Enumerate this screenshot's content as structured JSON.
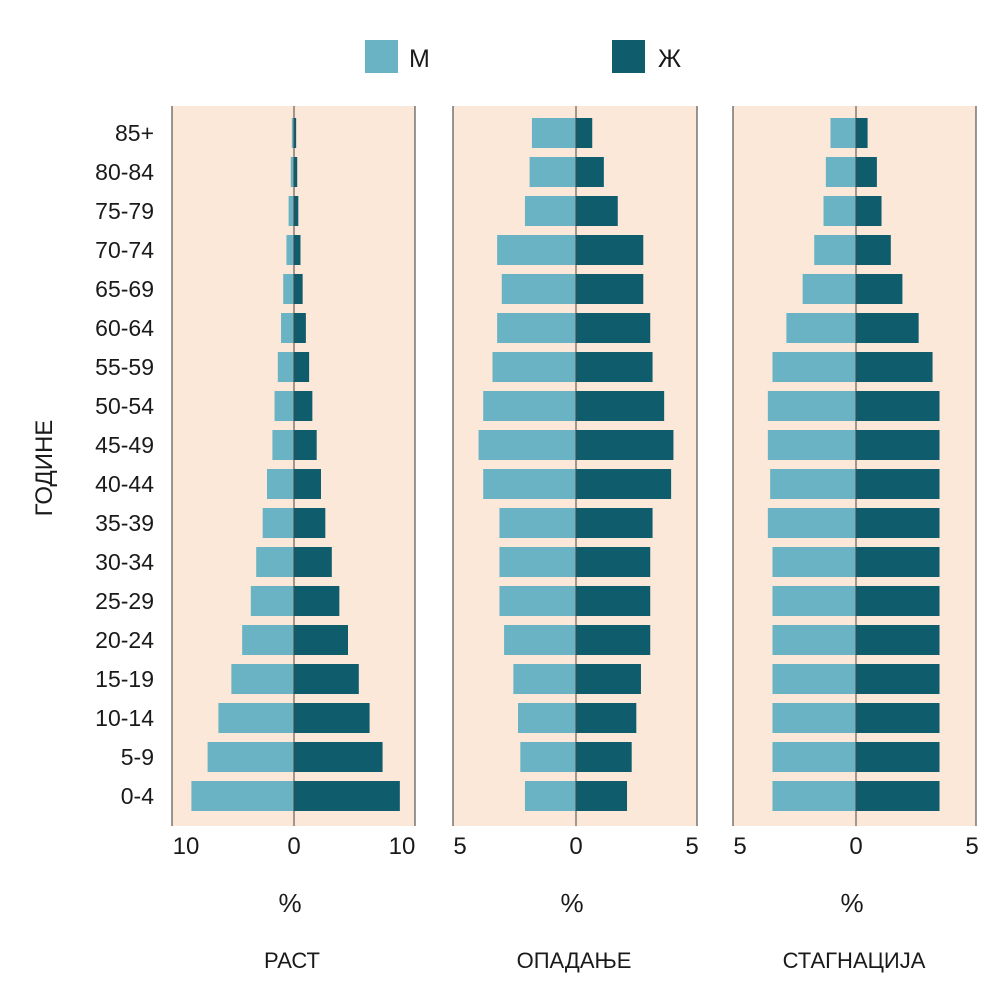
{
  "chart_data": {
    "type": "bar",
    "orientation": "horizontal-population-pyramid",
    "ylabel": "ГОДИНЕ",
    "categories": [
      "0-4",
      "5-9",
      "10-14",
      "15-19",
      "20-24",
      "25-29",
      "30-34",
      "35-39",
      "40-44",
      "45-49",
      "50-54",
      "55-59",
      "60-64",
      "65-69",
      "70-74",
      "75-79",
      "80-84",
      "85+"
    ],
    "legend": [
      {
        "name": "М",
        "color": "#6ab3c4"
      },
      {
        "name": "Ж",
        "color": "#0f5c6d"
      }
    ],
    "panel_background": "#fbe8d9",
    "panels": [
      {
        "xlabel": "%",
        "title": "РАСТ",
        "xlim": [
          -10,
          10
        ],
        "tick_labels": [
          "10",
          "0",
          "10"
        ],
        "series": [
          {
            "name": "М",
            "values": [
              9.5,
              8.0,
              7.0,
              5.8,
              4.8,
              4.0,
              3.5,
              2.9,
              2.5,
              2.0,
              1.8,
              1.5,
              1.2,
              1.0,
              0.7,
              0.5,
              0.3,
              0.2
            ]
          },
          {
            "name": "Ж",
            "values": [
              9.8,
              8.2,
              7.0,
              6.0,
              5.0,
              4.2,
              3.5,
              2.9,
              2.5,
              2.1,
              1.7,
              1.4,
              1.1,
              0.8,
              0.6,
              0.4,
              0.3,
              0.2
            ]
          }
        ]
      },
      {
        "xlabel": "%",
        "title": "ОПАДАЊЕ",
        "xlim": [
          -5,
          5
        ],
        "tick_labels": [
          "5",
          "0",
          "5"
        ],
        "series": [
          {
            "name": "М",
            "values": [
              2.2,
              2.4,
              2.5,
              2.7,
              3.1,
              3.3,
              3.3,
              3.3,
              4.0,
              4.2,
              4.0,
              3.6,
              3.4,
              3.2,
              3.4,
              2.2,
              2.0,
              1.9
            ]
          },
          {
            "name": "Ж",
            "values": [
              2.2,
              2.4,
              2.6,
              2.8,
              3.2,
              3.2,
              3.2,
              3.3,
              4.1,
              4.2,
              3.8,
              3.3,
              3.2,
              2.9,
              2.9,
              1.8,
              1.2,
              0.7
            ]
          }
        ]
      },
      {
        "xlabel": "%",
        "title": "СТАГНАЦИЈА",
        "xlim": [
          -5,
          5
        ],
        "tick_labels": [
          "5",
          "0",
          "5"
        ],
        "series": [
          {
            "name": "М",
            "values": [
              3.6,
              3.6,
              3.6,
              3.6,
              3.6,
              3.6,
              3.6,
              3.8,
              3.7,
              3.8,
              3.8,
              3.6,
              3.0,
              2.3,
              1.8,
              1.4,
              1.3,
              1.1
            ]
          },
          {
            "name": "Ж",
            "values": [
              3.6,
              3.6,
              3.6,
              3.6,
              3.6,
              3.6,
              3.6,
              3.6,
              3.6,
              3.6,
              3.6,
              3.3,
              2.7,
              2.0,
              1.5,
              1.1,
              0.9,
              0.5
            ]
          }
        ]
      }
    ]
  }
}
